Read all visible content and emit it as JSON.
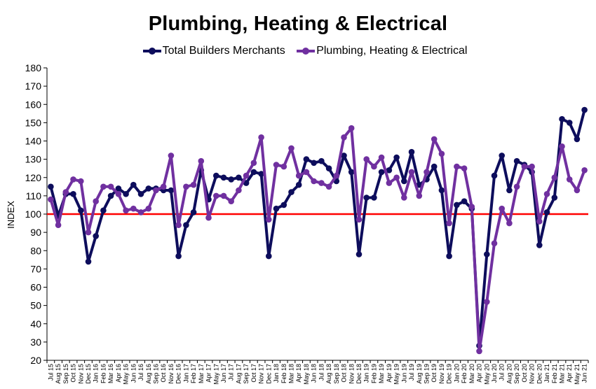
{
  "chart_data": {
    "type": "line",
    "title": "Plumbing, Heating & Electrical",
    "ylabel": "INDEX",
    "xlabel": "",
    "ylim": [
      20,
      180
    ],
    "yticks": [
      20,
      30,
      40,
      50,
      60,
      70,
      80,
      90,
      100,
      110,
      120,
      130,
      140,
      150,
      160,
      170,
      180
    ],
    "grid": false,
    "legend_position": "top",
    "reference_line": {
      "y": 100,
      "color": "#ff0000"
    },
    "categories": [
      "Jul 15",
      "Aug 15",
      "Sep 15",
      "Oct 15",
      "Nov 15",
      "Dec 15",
      "Jan 16",
      "Feb 16",
      "Mar 16",
      "Apr 16",
      "May 16",
      "Jun 16",
      "Jul 16",
      "Aug 16",
      "Sep 16",
      "Oct 16",
      "Nov 16",
      "Dec 16",
      "Jan 17",
      "Feb 17",
      "Mar 17",
      "Apr 17",
      "May 17",
      "Jun 17",
      "Jul 17",
      "Aug 17",
      "Sep 17",
      "Oct 17",
      "Nov 17",
      "Dec 17",
      "Jan 18",
      "Feb 18",
      "Mar 18",
      "Apr 18",
      "May 18",
      "Jun 18",
      "Jul 18",
      "Aug 18",
      "Sep 18",
      "Oct 18",
      "Nov 18",
      "Dec 18",
      "Jan 19",
      "Feb 19",
      "Mar 19",
      "Apr 19",
      "May 19",
      "Jun 19",
      "Jul 19",
      "Aug 19",
      "Sep 19",
      "Oct 19",
      "Nov 19",
      "Dec 19",
      "Jan 20",
      "Feb 20",
      "Mar 20",
      "Apr 20",
      "May 20",
      "Jun 20",
      "Jul 20",
      "Aug 20",
      "Sep 20",
      "Oct 20",
      "Nov 20",
      "Dec 20",
      "Jan 21",
      "Feb 21",
      "Mar 21",
      "Apr 21",
      "May 21",
      "Jun 21"
    ],
    "series": [
      {
        "name": "Total Builders Merchants",
        "color": "#0d0d5c",
        "values": [
          115,
          99,
          111,
          111,
          102,
          74,
          88,
          102,
          110,
          114,
          111,
          116,
          111,
          114,
          114,
          113,
          113,
          77,
          94,
          101,
          124,
          108,
          121,
          120,
          119,
          120,
          117,
          123,
          122,
          77,
          103,
          105,
          112,
          116,
          130,
          128,
          129,
          125,
          118,
          132,
          123,
          78,
          109,
          109,
          123,
          124,
          131,
          118,
          134,
          116,
          119,
          126,
          113,
          77,
          105,
          107,
          103,
          28,
          78,
          121,
          132,
          113,
          129,
          127,
          123,
          83,
          101,
          109,
          152,
          150,
          141,
          157
        ]
      },
      {
        "name": "Plumbing, Heating & Electrical",
        "color": "#7030a0",
        "values": [
          108,
          94,
          112,
          119,
          118,
          90,
          107,
          115,
          115,
          111,
          102,
          103,
          101,
          103,
          113,
          115,
          132,
          94,
          115,
          116,
          129,
          98,
          110,
          110,
          107,
          113,
          121,
          128,
          142,
          97,
          127,
          126,
          136,
          121,
          123,
          118,
          117,
          115,
          121,
          142,
          147,
          97,
          130,
          126,
          131,
          117,
          120,
          109,
          123,
          110,
          123,
          141,
          133,
          95,
          126,
          125,
          104,
          25,
          52,
          84,
          103,
          95,
          115,
          126,
          126,
          96,
          111,
          120,
          137,
          119,
          113,
          124
        ]
      }
    ]
  }
}
